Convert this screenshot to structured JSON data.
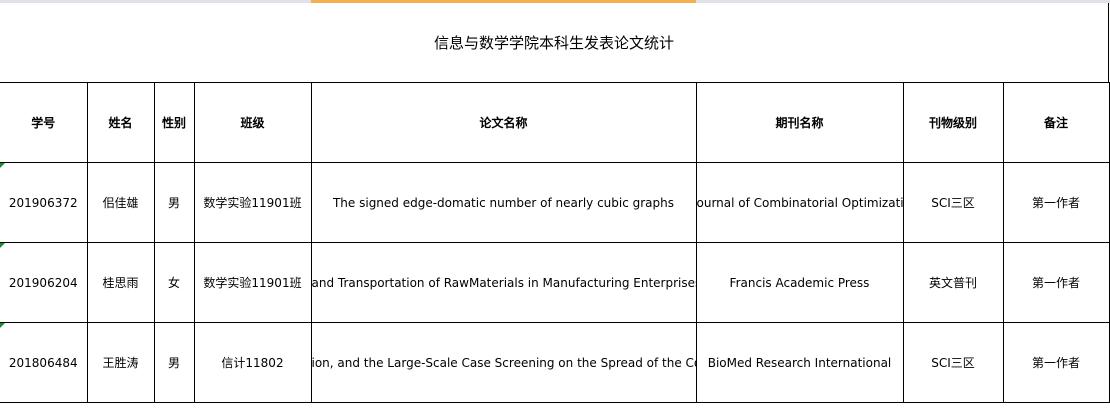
{
  "sheet": {
    "title": "信息与数学学院本科生发表论文统计",
    "headers": [
      "学号",
      "姓名",
      "性别",
      "班级",
      "论文名称",
      "期刊名称",
      "刊物级别",
      "备注"
    ],
    "rows": [
      [
        "201906372",
        "佀佳雄",
        "男",
        "数学实验11901班",
        "The signed edge-domatic number of nearly cubic graphs",
        "ournal of Combinatorial Optimizatio",
        "SCI三区",
        "第一作者"
      ],
      [
        "201906204",
        "桂思雨",
        "女",
        "数学实验11901班",
        "and Transportation of RawMaterials in Manufacturing Enterprises I",
        "Francis Academic Press",
        "英文普刊",
        "第一作者"
      ],
      [
        "201806484",
        "王胜涛",
        "男",
        "信计11802",
        "ion, and the Large-Scale Case Screening on the Spread of the Cor",
        "BioMed Research International",
        "SCI三区",
        "第一作者"
      ]
    ],
    "colors": {
      "selected_column_header": "#f4b04f",
      "error_indicator": "#1a8a2a",
      "grid": "#000000"
    }
  }
}
